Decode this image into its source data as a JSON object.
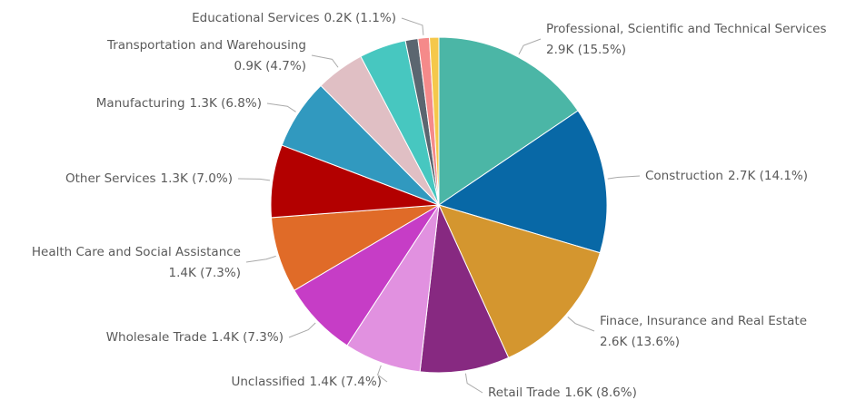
{
  "chart_data": {
    "type": "pie",
    "categories": [
      "Professional, Scientific and Technical Services",
      "Construction",
      "Finace, Insurance and Real Estate",
      "Retail Trade",
      "Unclassified",
      "Wholesale Trade",
      "Health Care and Social Assistance",
      "Other Services",
      "Manufacturing",
      "Transportation and Warehousing",
      null,
      null,
      "Educational Services",
      null
    ],
    "values": [
      15.5,
      14.1,
      13.6,
      8.6,
      7.4,
      7.3,
      7.3,
      7.0,
      6.8,
      4.7,
      4.5,
      1.2,
      1.1,
      0.9
    ],
    "value_labels": [
      "2.9K (15.5%)",
      "2.7K (14.1%)",
      "2.6K (13.6%)",
      "1.6K (8.6%)",
      "1.4K (7.4%)",
      "1.4K (7.3%)",
      "1.4K (7.3%)",
      "1.3K (7.0%)",
      "1.3K (6.8%)",
      "0.9K (4.7%)",
      null,
      null,
      "0.2K (1.1%)",
      null
    ],
    "colors": [
      "#4bb6a6",
      "#0868a6",
      "#d4962f",
      "#872981",
      "#e191e0",
      "#c63dc6",
      "#e06b28",
      "#b30000",
      "#3199bf",
      "#e0bfc4",
      "#47c7c0",
      "#5b6670",
      "#f58a8a",
      "#f5c84b"
    ]
  }
}
